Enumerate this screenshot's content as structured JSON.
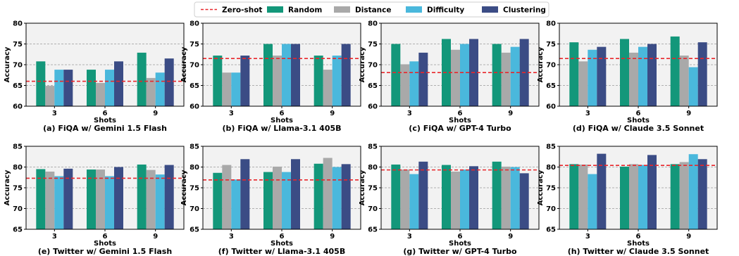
{
  "chart_data": [
    {
      "type": "bar",
      "caption": "(a) FiQA w/ Gemini 1.5 Flash",
      "categories": [
        "3",
        "6",
        "9"
      ],
      "series": [
        {
          "name": "Random",
          "values": [
            70.8,
            68.8,
            72.9
          ]
        },
        {
          "name": "Distance",
          "values": [
            64.9,
            65.6,
            66.8
          ]
        },
        {
          "name": "Difficulty",
          "values": [
            68.8,
            68.8,
            68.1
          ]
        },
        {
          "name": "Clustering",
          "values": [
            68.8,
            70.8,
            71.5
          ]
        }
      ],
      "zero_shot": 66.0,
      "ylim": [
        60,
        80
      ],
      "yticks": [
        60,
        65,
        70,
        75,
        80
      ],
      "xlabel": "Shots",
      "ylabel": "Accuracy"
    },
    {
      "type": "bar",
      "caption": "(b) FiQA w/ Llama-3.1 405B",
      "categories": [
        "3",
        "6",
        "9"
      ],
      "series": [
        {
          "name": "Random",
          "values": [
            72.2,
            75.0,
            72.2
          ]
        },
        {
          "name": "Distance",
          "values": [
            68.1,
            72.2,
            68.8
          ]
        },
        {
          "name": "Difficulty",
          "values": [
            68.1,
            75.0,
            72.2
          ]
        },
        {
          "name": "Clustering",
          "values": [
            72.2,
            75.0,
            75.0
          ]
        }
      ],
      "zero_shot": 71.5,
      "ylim": [
        60,
        80
      ],
      "yticks": [
        60,
        65,
        70,
        75,
        80
      ],
      "xlabel": "Shots",
      "ylabel": "Accuracy"
    },
    {
      "type": "bar",
      "caption": "(c) FiQA w/ GPT-4 Turbo",
      "categories": [
        "3",
        "6",
        "9"
      ],
      "series": [
        {
          "name": "Random",
          "values": [
            75.0,
            76.2,
            75.0
          ]
        },
        {
          "name": "Distance",
          "values": [
            70.1,
            73.6,
            72.9
          ]
        },
        {
          "name": "Difficulty",
          "values": [
            70.8,
            75.0,
            74.3
          ]
        },
        {
          "name": "Clustering",
          "values": [
            72.9,
            76.2,
            76.2
          ]
        }
      ],
      "zero_shot": 68.1,
      "ylim": [
        60,
        80
      ],
      "yticks": [
        60,
        65,
        70,
        75,
        80
      ],
      "xlabel": "Shots",
      "ylabel": "Accuracy"
    },
    {
      "type": "bar",
      "caption": "(d) FiQA w/ Claude 3.5 Sonnet",
      "categories": [
        "3",
        "6",
        "9"
      ],
      "series": [
        {
          "name": "Random",
          "values": [
            75.4,
            76.2,
            76.8
          ]
        },
        {
          "name": "Distance",
          "values": [
            70.8,
            72.9,
            72.2
          ]
        },
        {
          "name": "Difficulty",
          "values": [
            73.6,
            74.3,
            69.4
          ]
        },
        {
          "name": "Clustering",
          "values": [
            74.3,
            75.0,
            75.4
          ]
        }
      ],
      "zero_shot": 71.5,
      "ylim": [
        60,
        80
      ],
      "yticks": [
        60,
        65,
        70,
        75,
        80
      ],
      "xlabel": "Shots",
      "ylabel": "Accuracy"
    },
    {
      "type": "bar",
      "caption": "(e) Twitter w/ Gemini 1.5 Flash",
      "categories": [
        "3",
        "6",
        "9"
      ],
      "series": [
        {
          "name": "Random",
          "values": [
            79.5,
            79.4,
            80.6
          ]
        },
        {
          "name": "Distance",
          "values": [
            78.9,
            79.4,
            79.3
          ]
        },
        {
          "name": "Difficulty",
          "values": [
            77.8,
            77.8,
            78.2
          ]
        },
        {
          "name": "Clustering",
          "values": [
            79.6,
            80.0,
            80.5
          ]
        }
      ],
      "zero_shot": 77.3,
      "ylim": [
        65,
        85
      ],
      "yticks": [
        65,
        70,
        75,
        80,
        85
      ],
      "xlabel": "Shots",
      "ylabel": "Accuracy"
    },
    {
      "type": "bar",
      "caption": "(f) Twitter w/ Llama-3.1 405B",
      "categories": [
        "3",
        "6",
        "9"
      ],
      "series": [
        {
          "name": "Random",
          "values": [
            78.6,
            78.8,
            80.8
          ]
        },
        {
          "name": "Distance",
          "values": [
            80.5,
            80.1,
            82.2
          ]
        },
        {
          "name": "Difficulty",
          "values": [
            77.0,
            78.8,
            80.0
          ]
        },
        {
          "name": "Clustering",
          "values": [
            81.9,
            81.9,
            80.7
          ]
        }
      ],
      "zero_shot": 76.9,
      "ylim": [
        65,
        85
      ],
      "yticks": [
        65,
        70,
        75,
        80,
        85
      ],
      "xlabel": "Shots",
      "ylabel": "Accuracy"
    },
    {
      "type": "bar",
      "caption": "(g) Twitter w/ GPT-4 Turbo",
      "categories": [
        "3",
        "6",
        "9"
      ],
      "series": [
        {
          "name": "Random",
          "values": [
            80.6,
            80.5,
            81.3
          ]
        },
        {
          "name": "Distance",
          "values": [
            79.4,
            78.9,
            80.1
          ]
        },
        {
          "name": "Difficulty",
          "values": [
            78.3,
            79.4,
            80.0
          ]
        },
        {
          "name": "Clustering",
          "values": [
            81.3,
            80.2,
            78.5
          ]
        }
      ],
      "zero_shot": 79.3,
      "ylim": [
        65,
        85
      ],
      "yticks": [
        65,
        70,
        75,
        80,
        85
      ],
      "xlabel": "Shots",
      "ylabel": "Accuracy"
    },
    {
      "type": "bar",
      "caption": "(h) Twitter w/ Claude 3.5 Sonnet",
      "categories": [
        "3",
        "6",
        "9"
      ],
      "series": [
        {
          "name": "Random",
          "values": [
            80.7,
            80.1,
            80.7
          ]
        },
        {
          "name": "Distance",
          "values": [
            80.6,
            80.7,
            81.2
          ]
        },
        {
          "name": "Difficulty",
          "values": [
            78.3,
            80.5,
            83.1
          ]
        },
        {
          "name": "Clustering",
          "values": [
            83.2,
            82.9,
            81.9
          ]
        }
      ],
      "zero_shot": 80.4,
      "ylim": [
        65,
        85
      ],
      "yticks": [
        65,
        70,
        75,
        80,
        85
      ],
      "xlabel": "Shots",
      "ylabel": "Accuracy"
    }
  ],
  "legend": {
    "items": [
      {
        "label": "Zero-shot",
        "kind": "dashed-line",
        "color": "#e8262b"
      },
      {
        "label": "Random",
        "kind": "bar",
        "color": "#13977a"
      },
      {
        "label": "Distance",
        "kind": "bar",
        "color": "#a9a9a9"
      },
      {
        "label": "Difficulty",
        "kind": "bar",
        "color": "#4ab8dc"
      },
      {
        "label": "Clustering",
        "kind": "bar",
        "color": "#3b4c85"
      }
    ],
    "position": "top-center"
  },
  "style": {
    "plot_background": "#f2f2f2",
    "grid": true,
    "grid_color": "#9a9a9a",
    "zero_shot_color": "#e8262b"
  }
}
